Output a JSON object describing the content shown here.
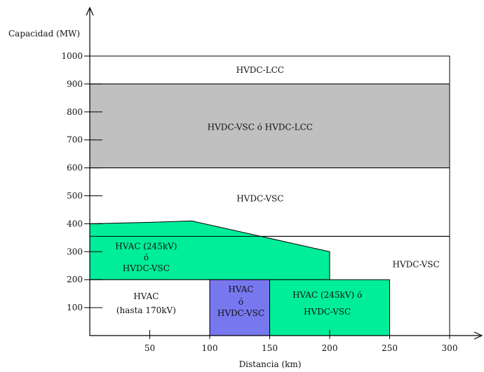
{
  "chart_data": {
    "type": "area",
    "ylabel": "Capacidad (MW)",
    "xlabel": "Distancia (km)",
    "xlim": [
      0,
      300
    ],
    "ylim": [
      0,
      1000
    ],
    "x_ticks": [
      50,
      100,
      150,
      200,
      250,
      300
    ],
    "y_ticks": [
      100,
      200,
      300,
      400,
      500,
      600,
      700,
      800,
      900,
      1000
    ],
    "colors": {
      "grey": "#c0c0c0",
      "green": "#00ee99",
      "blue": "#7777ee",
      "white": "#ffffff",
      "border": "#000000"
    },
    "regions": [
      {
        "id": "hvdc-lcc",
        "fill": "white",
        "polygon": [
          [
            0,
            900
          ],
          [
            300,
            900
          ],
          [
            300,
            1000
          ],
          [
            0,
            1000
          ]
        ],
        "labels": [
          {
            "text": "HVDC-LCC",
            "at": [
              142,
              950
            ]
          }
        ]
      },
      {
        "id": "hvdc-vsc-o-lcc",
        "fill": "grey",
        "polygon": [
          [
            0,
            600
          ],
          [
            300,
            600
          ],
          [
            300,
            900
          ],
          [
            0,
            900
          ]
        ],
        "labels": [
          {
            "text": "HVDC-VSC  ó  HVDC-LCC",
            "at": [
              142,
              745
            ]
          }
        ]
      },
      {
        "id": "hvdc-vsc-upper",
        "fill": "white",
        "polygon": [
          [
            0,
            355
          ],
          [
            300,
            355
          ],
          [
            300,
            600
          ],
          [
            0,
            600
          ]
        ],
        "labels": [
          {
            "text": "HVDC-VSC",
            "at": [
              142,
              490
            ]
          }
        ]
      },
      {
        "id": "hvac245-o-vsc-upper",
        "fill": "green",
        "polygon": [
          [
            0,
            200
          ],
          [
            200,
            200
          ],
          [
            200,
            300
          ],
          [
            85,
            410
          ],
          [
            50,
            405
          ],
          [
            0,
            400
          ]
        ],
        "labels": [
          {
            "text": "HVAC (245kV)",
            "at": [
              47,
              320
            ]
          },
          {
            "text": "ó",
            "at": [
              47,
              280
            ]
          },
          {
            "text": "HVDC-VSC",
            "at": [
              47,
              240
            ]
          }
        ]
      },
      {
        "id": "hvac-170",
        "fill": "white",
        "polygon": [
          [
            0,
            0
          ],
          [
            100,
            0
          ],
          [
            100,
            200
          ],
          [
            0,
            200
          ]
        ],
        "labels": [
          {
            "text": "HVAC",
            "at": [
              47,
              140
            ]
          },
          {
            "text": "(hasta 170kV)",
            "at": [
              47,
              90
            ]
          }
        ]
      },
      {
        "id": "hvac-o-vsc-blue",
        "fill": "blue",
        "polygon": [
          [
            100,
            0
          ],
          [
            150,
            0
          ],
          [
            150,
            200
          ],
          [
            100,
            200
          ]
        ],
        "labels": [
          {
            "text": "HVAC",
            "at": [
              126,
              165
            ]
          },
          {
            "text": "ó",
            "at": [
              126,
              120
            ]
          },
          {
            "text": "HVDC-VSC",
            "at": [
              126,
              80
            ]
          }
        ]
      },
      {
        "id": "hvac245-o-vsc-lower",
        "fill": "green",
        "polygon": [
          [
            150,
            0
          ],
          [
            250,
            0
          ],
          [
            250,
            200
          ],
          [
            150,
            200
          ]
        ],
        "labels": [
          {
            "text": "HVAC (245kV)  ó",
            "at": [
              198,
              145
            ]
          },
          {
            "text": "HVDC-VSC",
            "at": [
              198,
              85
            ]
          }
        ]
      },
      {
        "id": "hvdc-vsc-right",
        "fill": "none",
        "polygon": [],
        "labels": [
          {
            "text": "HVDC-VSC",
            "at": [
              272,
              255
            ]
          }
        ]
      }
    ],
    "lines": [
      {
        "id": "line-355",
        "points": [
          [
            0,
            355
          ],
          [
            300,
            355
          ]
        ]
      }
    ]
  }
}
